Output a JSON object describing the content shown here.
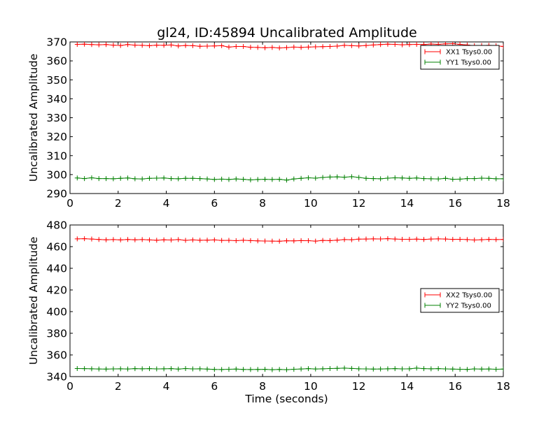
{
  "figure": {
    "title": "gl24, ID:45894 Uncalibrated Amplitude"
  },
  "chart_data": [
    {
      "type": "line",
      "title": "gl24, ID:45894 Uncalibrated Amplitude",
      "xlabel": "",
      "ylabel": "Uncalibrated Amplitude",
      "xlim": [
        0,
        18
      ],
      "ylim": [
        290,
        370
      ],
      "xticks": [
        "0",
        "2",
        "4",
        "6",
        "8",
        "10",
        "12",
        "14",
        "16",
        "18"
      ],
      "yticks": [
        "290",
        "300",
        "310",
        "320",
        "330",
        "340",
        "350",
        "360",
        "370"
      ],
      "grid": false,
      "legend_position": "upper-right",
      "x": [
        0.3,
        0.6,
        0.9,
        1.2,
        1.5,
        1.8,
        2.1,
        2.4,
        2.7,
        3.0,
        3.3,
        3.6,
        3.9,
        4.2,
        4.5,
        4.8,
        5.1,
        5.4,
        5.7,
        6.0,
        6.3,
        6.6,
        6.9,
        7.2,
        7.5,
        7.8,
        8.1,
        8.4,
        8.7,
        9.0,
        9.3,
        9.6,
        9.9,
        10.2,
        10.5,
        10.8,
        11.1,
        11.4,
        11.7,
        12.0,
        12.3,
        12.6,
        12.9,
        13.2,
        13.5,
        13.8,
        14.1,
        14.4,
        14.7,
        15.0,
        15.3,
        15.6,
        15.9,
        16.2,
        16.5,
        16.8,
        17.1,
        17.4,
        17.7,
        18.0
      ],
      "series": [
        {
          "name": "XX1 Tsys0.00",
          "color": "#ff0000",
          "values": [
            368.7,
            368.8,
            368.6,
            368.5,
            368.6,
            368.3,
            368.1,
            368.6,
            368.3,
            368.2,
            368.0,
            368.3,
            368.2,
            368.4,
            367.9,
            368.1,
            368.0,
            367.7,
            367.8,
            367.9,
            368.0,
            367.3,
            367.6,
            367.6,
            367.2,
            367.1,
            366.9,
            367.1,
            366.8,
            367.0,
            367.3,
            367.1,
            367.3,
            367.4,
            367.5,
            367.6,
            367.8,
            368.2,
            368.0,
            367.9,
            368.1,
            368.4,
            368.6,
            368.8,
            368.7,
            368.5,
            368.6,
            368.7,
            368.6,
            368.9,
            368.7,
            369.0,
            369.1,
            368.7,
            368.4,
            368.0,
            368.1,
            368.2,
            368.0,
            367.6
          ]
        },
        {
          "name": "YY1 Tsys0.00",
          "color": "#008000",
          "values": [
            298.2,
            297.9,
            298.3,
            297.9,
            297.9,
            297.8,
            298.0,
            298.2,
            297.8,
            297.7,
            298.0,
            298.1,
            298.2,
            297.9,
            297.8,
            298.0,
            298.0,
            297.9,
            297.7,
            297.4,
            297.6,
            297.4,
            297.7,
            297.5,
            297.2,
            297.4,
            297.5,
            297.4,
            297.5,
            297.1,
            297.7,
            298.0,
            298.3,
            298.1,
            298.5,
            298.7,
            298.8,
            298.6,
            298.9,
            298.5,
            298.0,
            297.9,
            297.8,
            298.1,
            298.3,
            298.2,
            298.0,
            298.2,
            297.9,
            297.8,
            297.7,
            298.0,
            297.5,
            297.6,
            297.9,
            297.9,
            298.1,
            298.0,
            297.8,
            297.8
          ]
        }
      ]
    },
    {
      "type": "line",
      "title": "",
      "xlabel": "Time (seconds)",
      "ylabel": "Uncalibrated Amplitude",
      "xlim": [
        0,
        18
      ],
      "ylim": [
        340,
        480
      ],
      "xticks": [
        "0",
        "2",
        "4",
        "6",
        "8",
        "10",
        "12",
        "14",
        "16",
        "18"
      ],
      "yticks": [
        "340",
        "360",
        "380",
        "400",
        "420",
        "440",
        "460",
        "480"
      ],
      "grid": false,
      "legend_position": "center-right",
      "x": [
        0.3,
        0.6,
        0.9,
        1.2,
        1.5,
        1.8,
        2.1,
        2.4,
        2.7,
        3.0,
        3.3,
        3.6,
        3.9,
        4.2,
        4.5,
        4.8,
        5.1,
        5.4,
        5.7,
        6.0,
        6.3,
        6.6,
        6.9,
        7.2,
        7.5,
        7.8,
        8.1,
        8.4,
        8.7,
        9.0,
        9.3,
        9.6,
        9.9,
        10.2,
        10.5,
        10.8,
        11.1,
        11.4,
        11.7,
        12.0,
        12.3,
        12.6,
        12.9,
        13.2,
        13.5,
        13.8,
        14.1,
        14.4,
        14.7,
        15.0,
        15.3,
        15.6,
        15.9,
        16.2,
        16.5,
        16.8,
        17.1,
        17.4,
        17.7,
        18.0
      ],
      "series": [
        {
          "name": "XX2 Tsys0.00",
          "color": "#ff0000",
          "values": [
            467.2,
            467.3,
            467.0,
            466.6,
            466.3,
            466.5,
            466.2,
            466.6,
            466.3,
            466.5,
            466.2,
            465.9,
            466.3,
            466.1,
            466.5,
            465.8,
            466.2,
            465.9,
            466.0,
            466.2,
            465.7,
            465.8,
            465.5,
            465.9,
            465.6,
            465.3,
            465.2,
            465.1,
            465.0,
            465.4,
            465.3,
            465.6,
            465.5,
            465.1,
            465.7,
            465.6,
            466.0,
            466.5,
            466.4,
            466.9,
            467.0,
            467.2,
            467.1,
            467.3,
            467.0,
            466.8,
            466.8,
            466.9,
            466.6,
            467.0,
            467.2,
            467.0,
            466.7,
            466.8,
            466.5,
            466.1,
            466.4,
            466.7,
            466.5,
            466.6
          ]
        },
        {
          "name": "YY2 Tsys0.00",
          "color": "#008000",
          "values": [
            347.4,
            347.3,
            347.2,
            347.0,
            346.9,
            347.1,
            347.2,
            347.0,
            347.3,
            347.2,
            347.3,
            347.1,
            347.2,
            347.3,
            346.9,
            347.4,
            347.1,
            347.2,
            346.9,
            346.6,
            346.5,
            346.8,
            346.9,
            346.6,
            346.5,
            346.6,
            346.7,
            346.4,
            346.6,
            346.4,
            346.8,
            347.0,
            347.3,
            347.0,
            347.2,
            347.4,
            347.6,
            347.8,
            347.5,
            347.2,
            347.1,
            346.9,
            347.0,
            347.2,
            347.3,
            347.1,
            347.2,
            347.8,
            347.3,
            347.2,
            347.3,
            347.1,
            346.9,
            346.8,
            346.6,
            347.1,
            346.9,
            347.0,
            346.8,
            346.9
          ]
        }
      ]
    }
  ]
}
